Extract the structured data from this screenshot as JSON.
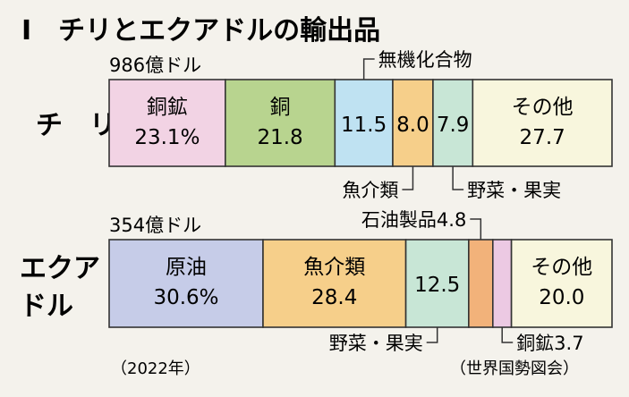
{
  "title": "I　チリとエクアドルの輸出品",
  "year_note": "（2022年）",
  "source": "（世界国勢図会）",
  "colors": {
    "copper_ore": "#f2d3e4",
    "copper": "#b8d48f",
    "inorganic": "#bfe2f2",
    "fish": "#f6cf8a",
    "vegetables_fruit": "#c8e6d6",
    "other": "#f8f6dd",
    "crude_oil": "#c6cce8",
    "petroleum": "#f2b27a",
    "copper_ore2": "#ecc9e3"
  },
  "chart_data": [
    {
      "type": "bar",
      "orientation": "horizontal-stacked-100",
      "country": "チ　リ",
      "total": "986億ドル",
      "segments": [
        {
          "name": "銅鉱",
          "value": 23.1,
          "label": "23.1%",
          "color_key": "copper_ore"
        },
        {
          "name": "銅",
          "value": 21.8,
          "label": "21.8",
          "color_key": "copper"
        },
        {
          "name": "無機化合物",
          "value": 11.5,
          "label": "11.5",
          "color_key": "inorganic",
          "callout": "above"
        },
        {
          "name": "魚介類",
          "value": 8.0,
          "label": "8.0",
          "color_key": "fish",
          "callout": "below"
        },
        {
          "name": "野菜・果実",
          "value": 7.9,
          "label": "7.9",
          "color_key": "vegetables_fruit",
          "callout": "below"
        },
        {
          "name": "その他",
          "value": 27.7,
          "label": "27.7",
          "color_key": "other"
        }
      ]
    },
    {
      "type": "bar",
      "orientation": "horizontal-stacked-100",
      "country": "エクアドル",
      "total": "354億ドル",
      "segments": [
        {
          "name": "原油",
          "value": 30.6,
          "label": "30.6%",
          "color_key": "crude_oil"
        },
        {
          "name": "魚介類",
          "value": 28.4,
          "label": "28.4",
          "color_key": "fish"
        },
        {
          "name": "野菜・果実",
          "value": 12.5,
          "label": "12.5",
          "color_key": "vegetables_fruit",
          "callout": "below"
        },
        {
          "name": "石油製品",
          "value": 4.8,
          "label": "4.8",
          "color_key": "petroleum",
          "callout": "above"
        },
        {
          "name": "銅鉱",
          "value": 3.7,
          "label": "3.7",
          "color_key": "copper_ore2",
          "callout": "below"
        },
        {
          "name": "その他",
          "value": 20.0,
          "label": "20.0",
          "color_key": "other"
        }
      ]
    }
  ]
}
